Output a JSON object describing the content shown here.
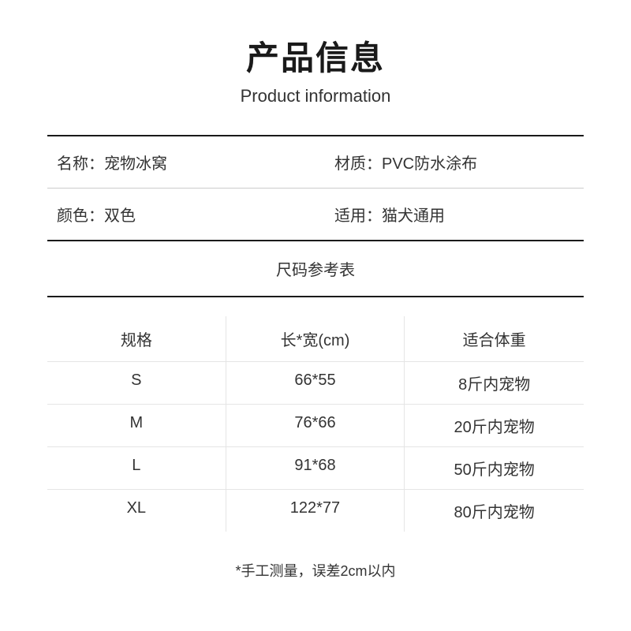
{
  "header": {
    "title_cn": "产品信息",
    "title_en": "Product information"
  },
  "info": {
    "name_label": "名称：",
    "name_value": "宠物冰窝",
    "material_label": "材质：",
    "material_value": "PVC防水涂布",
    "color_label": "颜色：",
    "color_value": "双色",
    "usage_label": "适用：",
    "usage_value": "猫犬通用"
  },
  "size_table": {
    "title": "尺码参考表",
    "columns": [
      "规格",
      "长*宽(cm)",
      "适合体重"
    ],
    "rows": [
      [
        "S",
        "66*55",
        "8斤内宠物"
      ],
      [
        "M",
        "76*66",
        "20斤内宠物"
      ],
      [
        "L",
        "91*68",
        "50斤内宠物"
      ],
      [
        "XL",
        "122*77",
        "80斤内宠物"
      ]
    ]
  },
  "footnote": "*手工测量，误差2cm以内",
  "style": {
    "background_color": "#ffffff",
    "text_color": "#1a1a1a",
    "secondary_text_color": "#333333",
    "heavy_divider_color": "#1a1a1a",
    "light_divider_color": "#cccccc",
    "table_border_color": "#e5e5e5",
    "title_cn_fontsize": 42,
    "title_en_fontsize": 22,
    "body_fontsize": 20,
    "footnote_fontsize": 18
  }
}
